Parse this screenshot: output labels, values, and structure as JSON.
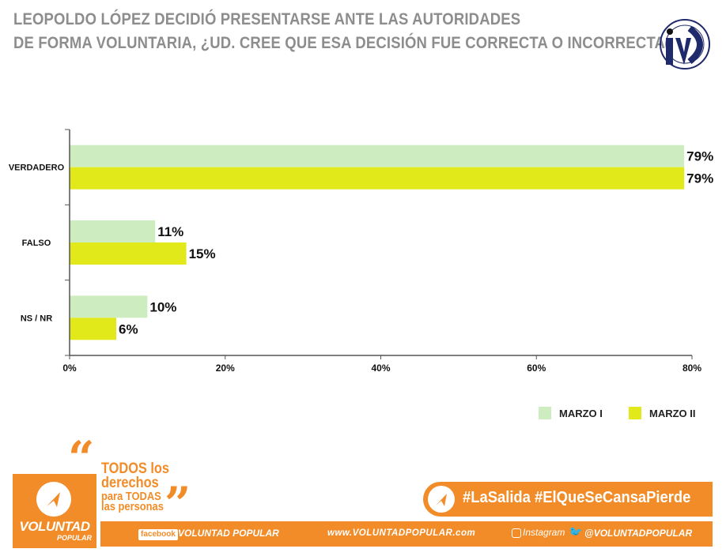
{
  "title": {
    "line1": "LEOPOLDO LÓPEZ DECIDIÓ PRESENTARSE ANTE LAS AUTORIDADES",
    "line2": "DE FORMA VOLUNTARIA, ¿UD. CREE QUE ESA DECISIÓN FUE CORRECTA O INCORRECTA?"
  },
  "logo": {
    "ring_text": "Instituto Venezolano de Análisis de Datos",
    "letters": "IVAD",
    "colors": {
      "navy": "#1f2a6b",
      "black": "#111111"
    }
  },
  "chart_data": {
    "type": "bar",
    "orientation": "horizontal",
    "categories": [
      "VERDADERO",
      "FALSO",
      "NS / NR"
    ],
    "series": [
      {
        "name": "MARZO I",
        "values": [
          79,
          11,
          10
        ],
        "labels": [
          "79%",
          "11%",
          "10%"
        ],
        "color": "#cdedc1"
      },
      {
        "name": "MARZO II",
        "values": [
          79,
          15,
          6
        ],
        "labels": [
          "79%",
          "15%",
          "6%"
        ],
        "color": "#e2e91a"
      }
    ],
    "xlim": [
      0,
      80
    ],
    "x_ticks": [
      "0%",
      "20%",
      "40%",
      "60%",
      "80%"
    ],
    "grid": false,
    "legend": "bottom-right"
  },
  "footer": {
    "org_name": "VOLUNTAD",
    "org_sub": "POPULAR",
    "slogan": {
      "l1": "TODOS los",
      "l2": "derechos",
      "l3": "para TODAS",
      "l4": "las personas"
    },
    "hashtags": "#LaSalida #ElQueSeCansaPierde",
    "facebook_label": "facebook",
    "facebook_name": "VOLUNTAD POPULAR",
    "website": "www.VOLUNTADPOPULAR.com",
    "instagram_label": "Instagram",
    "twitter_handle": "@VOLUNTADPOPULAR",
    "accent": "#f28c28"
  }
}
